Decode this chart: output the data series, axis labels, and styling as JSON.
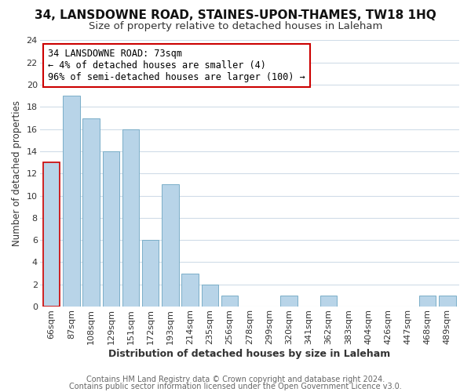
{
  "title": "34, LANSDOWNE ROAD, STAINES-UPON-THAMES, TW18 1HQ",
  "subtitle": "Size of property relative to detached houses in Laleham",
  "xlabel": "Distribution of detached houses by size in Laleham",
  "ylabel": "Number of detached properties",
  "bar_labels": [
    "66sqm",
    "87sqm",
    "108sqm",
    "129sqm",
    "151sqm",
    "172sqm",
    "193sqm",
    "214sqm",
    "235sqm",
    "256sqm",
    "278sqm",
    "299sqm",
    "320sqm",
    "341sqm",
    "362sqm",
    "383sqm",
    "404sqm",
    "426sqm",
    "447sqm",
    "468sqm",
    "489sqm"
  ],
  "bar_values": [
    13,
    19,
    17,
    14,
    16,
    6,
    11,
    3,
    2,
    1,
    0,
    0,
    1,
    0,
    1,
    0,
    0,
    0,
    0,
    1,
    1
  ],
  "bar_color": "#b8d4e8",
  "bar_edge_color": "#7aaec8",
  "highlight_bar_index": 0,
  "highlight_edge_color": "#cc0000",
  "annotation_line1": "34 LANSDOWNE ROAD: 73sqm",
  "annotation_line2": "← 4% of detached houses are smaller (4)",
  "annotation_line3": "96% of semi-detached houses are larger (100) →",
  "annotation_box_edge": "#cc0000",
  "annotation_box_face": "#ffffff",
  "ylim": [
    0,
    24
  ],
  "yticks": [
    0,
    2,
    4,
    6,
    8,
    10,
    12,
    14,
    16,
    18,
    20,
    22,
    24
  ],
  "footer_line1": "Contains HM Land Registry data © Crown copyright and database right 2024.",
  "footer_line2": "Contains public sector information licensed under the Open Government Licence v3.0.",
  "title_fontsize": 11,
  "subtitle_fontsize": 9.5,
  "xlabel_fontsize": 9,
  "ylabel_fontsize": 8.5,
  "tick_fontsize": 8,
  "annotation_fontsize": 8.5,
  "footer_fontsize": 7,
  "bg_color": "#ffffff",
  "grid_color": "#d0dce8"
}
